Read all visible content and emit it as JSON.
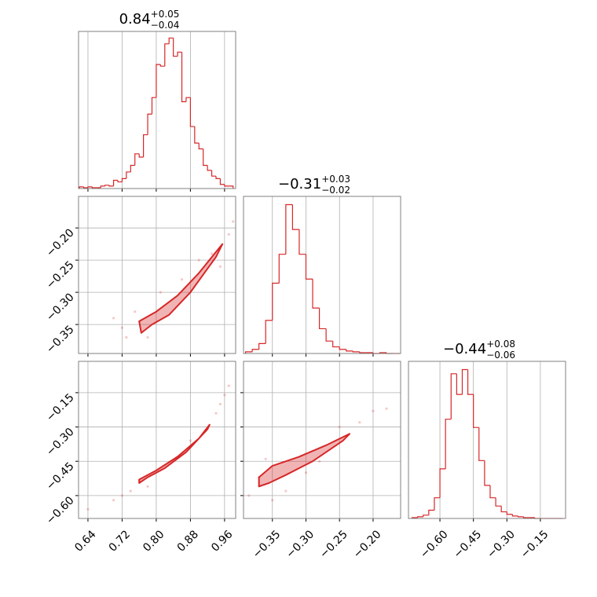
{
  "chart_data": [
    {
      "type": "histogram",
      "color": "#d62728",
      "title": {
        "value": "0.84",
        "upper": "+0.05",
        "lower": "−0.04"
      },
      "bins": [
        0.62,
        0.63,
        0.64,
        0.65,
        0.66,
        0.67,
        0.68,
        0.69,
        0.7,
        0.71,
        0.72,
        0.73,
        0.74,
        0.75,
        0.76,
        0.77,
        0.78,
        0.79,
        0.8,
        0.81,
        0.82,
        0.83,
        0.84,
        0.85,
        0.86,
        0.87,
        0.88,
        0.89,
        0.9,
        0.91,
        0.92,
        0.93,
        0.94,
        0.95,
        0.96,
        0.97,
        0.98
      ],
      "values": [
        2,
        1,
        2,
        1,
        1,
        3,
        4,
        3,
        10,
        8,
        12,
        20,
        28,
        42,
        38,
        65,
        90,
        110,
        150,
        148,
        175,
        182,
        160,
        165,
        105,
        110,
        75,
        55,
        48,
        28,
        22,
        15,
        12,
        5,
        3,
        3
      ],
      "xlim": [
        0.618,
        0.986
      ],
      "ylim": [
        0,
        190
      ],
      "xticks": [
        0.64,
        0.72,
        0.8,
        0.88,
        0.96
      ],
      "xticklabels": false,
      "grid": true
    },
    {
      "type": "scatter",
      "color": "#d62728",
      "x": [
        0.7,
        0.73,
        0.75,
        0.78,
        0.9,
        0.93,
        0.97,
        0.98,
        0.72,
        0.86,
        0.95,
        0.81
      ],
      "y": [
        -0.34,
        -0.37,
        -0.33,
        -0.37,
        -0.25,
        -0.24,
        -0.21,
        -0.19,
        -0.355,
        -0.28,
        -0.26,
        -0.3
      ],
      "contours": [
        {
          "x": [
            0.76,
            0.8,
            0.85,
            0.9,
            0.955,
            0.94,
            0.88,
            0.83,
            0.79,
            0.765
          ],
          "y": [
            -0.345,
            -0.33,
            -0.305,
            -0.27,
            -0.225,
            -0.245,
            -0.3,
            -0.335,
            -0.35,
            -0.363
          ]
        }
      ],
      "xlim": [
        0.618,
        0.986
      ],
      "ylim": [
        -0.395,
        -0.151
      ],
      "xticks": [
        0.64,
        0.72,
        0.8,
        0.88,
        0.96
      ],
      "xticklabels": false,
      "yticks": [
        {
          "value": -0.2,
          "label": "−0.20"
        },
        {
          "value": -0.25,
          "label": "−0.25"
        },
        {
          "value": -0.3,
          "label": "−0.30"
        },
        {
          "value": -0.35,
          "label": "−0.35"
        }
      ],
      "yticklabels": true,
      "grid": true
    },
    {
      "type": "histogram",
      "color": "#d62728",
      "title": {
        "value": "−0.31",
        "upper": "+0.03",
        "lower": "−0.02"
      },
      "bins": [
        -0.39,
        -0.38,
        -0.37,
        -0.36,
        -0.35,
        -0.34,
        -0.33,
        -0.32,
        -0.31,
        -0.3,
        -0.29,
        -0.28,
        -0.27,
        -0.26,
        -0.25,
        -0.24,
        -0.23,
        -0.22,
        -0.21,
        -0.2,
        -0.19,
        -0.18,
        -0.17,
        -0.16
      ],
      "values": [
        2,
        5,
        12,
        40,
        85,
        120,
        180,
        150,
        120,
        90,
        55,
        30,
        15,
        8,
        5,
        3,
        2,
        1,
        1,
        0,
        1,
        0,
        0
      ],
      "xlim": [
        -0.393,
        -0.159
      ],
      "ylim": [
        0,
        190
      ],
      "xticks": [
        -0.35,
        -0.3,
        -0.25,
        -0.2
      ],
      "xticklabels": false,
      "grid": true
    },
    {
      "type": "scatter",
      "color": "#d62728",
      "x": [
        0.64,
        0.7,
        0.72,
        0.74,
        0.94,
        0.95,
        0.96,
        0.97,
        0.88,
        0.78
      ],
      "y": [
        -0.66,
        -0.62,
        -0.6,
        -0.58,
        -0.24,
        -0.2,
        -0.16,
        -0.12,
        -0.36,
        -0.56
      ],
      "contours": [
        {
          "x": [
            0.76,
            0.8,
            0.85,
            0.9,
            0.925,
            0.92,
            0.87,
            0.82,
            0.78,
            0.76
          ],
          "y": [
            -0.53,
            -0.49,
            -0.43,
            -0.35,
            -0.29,
            -0.31,
            -0.41,
            -0.48,
            -0.52,
            -0.545
          ]
        }
      ],
      "xlim": [
        0.618,
        0.986
      ],
      "ylim": [
        -0.7,
        -0.013
      ],
      "xticks": [
        {
          "value": 0.64,
          "label": "0.64"
        },
        {
          "value": 0.72,
          "label": "0.72"
        },
        {
          "value": 0.8,
          "label": "0.80"
        },
        {
          "value": 0.88,
          "label": "0.88"
        },
        {
          "value": 0.96,
          "label": "0.96"
        }
      ],
      "xticklabels": true,
      "yticks": [
        {
          "value": -0.15,
          "label": "−0.15"
        },
        {
          "value": -0.3,
          "label": "−0.30"
        },
        {
          "value": -0.45,
          "label": "−0.45"
        },
        {
          "value": -0.6,
          "label": "−0.60"
        }
      ],
      "yticklabels": true,
      "grid": true
    },
    {
      "type": "scatter",
      "color": "#d62728",
      "x": [
        -0.385,
        -0.37,
        -0.35,
        -0.33,
        -0.3,
        -0.25,
        -0.22,
        -0.2,
        -0.18,
        -0.36,
        -0.28
      ],
      "y": [
        -0.6,
        -0.52,
        -0.62,
        -0.58,
        -0.5,
        -0.3,
        -0.28,
        -0.23,
        -0.22,
        -0.44,
        -0.45
      ],
      "contours": [
        {
          "x": [
            -0.37,
            -0.35,
            -0.31,
            -0.27,
            -0.235,
            -0.245,
            -0.29,
            -0.33,
            -0.355,
            -0.37
          ],
          "y": [
            -0.52,
            -0.47,
            -0.43,
            -0.38,
            -0.33,
            -0.36,
            -0.45,
            -0.51,
            -0.545,
            -0.56
          ]
        }
      ],
      "xlim": [
        -0.393,
        -0.159
      ],
      "ylim": [
        -0.7,
        -0.013
      ],
      "xticks": [
        {
          "value": -0.35,
          "label": "−0.35"
        },
        {
          "value": -0.3,
          "label": "−0.30"
        },
        {
          "value": -0.25,
          "label": "−0.25"
        },
        {
          "value": -0.2,
          "label": "−0.20"
        }
      ],
      "xticklabels": true,
      "yticks": [
        -0.15,
        -0.3,
        -0.45,
        -0.6
      ],
      "yticklabels": false,
      "grid": true
    },
    {
      "type": "histogram",
      "color": "#d62728",
      "title": {
        "value": "−0.44",
        "upper": "+0.08",
        "lower": "−0.06"
      },
      "bins": [
        -0.725,
        -0.7,
        -0.675,
        -0.65,
        -0.625,
        -0.6,
        -0.575,
        -0.55,
        -0.525,
        -0.5,
        -0.475,
        -0.45,
        -0.425,
        -0.4,
        -0.375,
        -0.35,
        -0.325,
        -0.3,
        -0.275,
        -0.25,
        -0.225,
        -0.2,
        -0.175,
        -0.15,
        -0.125,
        -0.1,
        -0.075,
        -0.05
      ],
      "values": [
        1,
        2,
        4,
        10,
        25,
        60,
        120,
        175,
        150,
        180,
        150,
        110,
        70,
        40,
        25,
        15,
        8,
        5,
        3,
        2,
        1,
        1,
        0,
        0,
        0,
        0,
        0
      ],
      "xlim": [
        -0.741,
        -0.037
      ],
      "ylim": [
        0,
        190
      ],
      "xticks": [
        {
          "value": -0.6,
          "label": "−0.60"
        },
        {
          "value": -0.45,
          "label": "−0.45"
        },
        {
          "value": -0.3,
          "label": "−0.30"
        },
        {
          "value": -0.15,
          "label": "−0.15"
        }
      ],
      "xticklabels": true,
      "grid": true
    }
  ]
}
